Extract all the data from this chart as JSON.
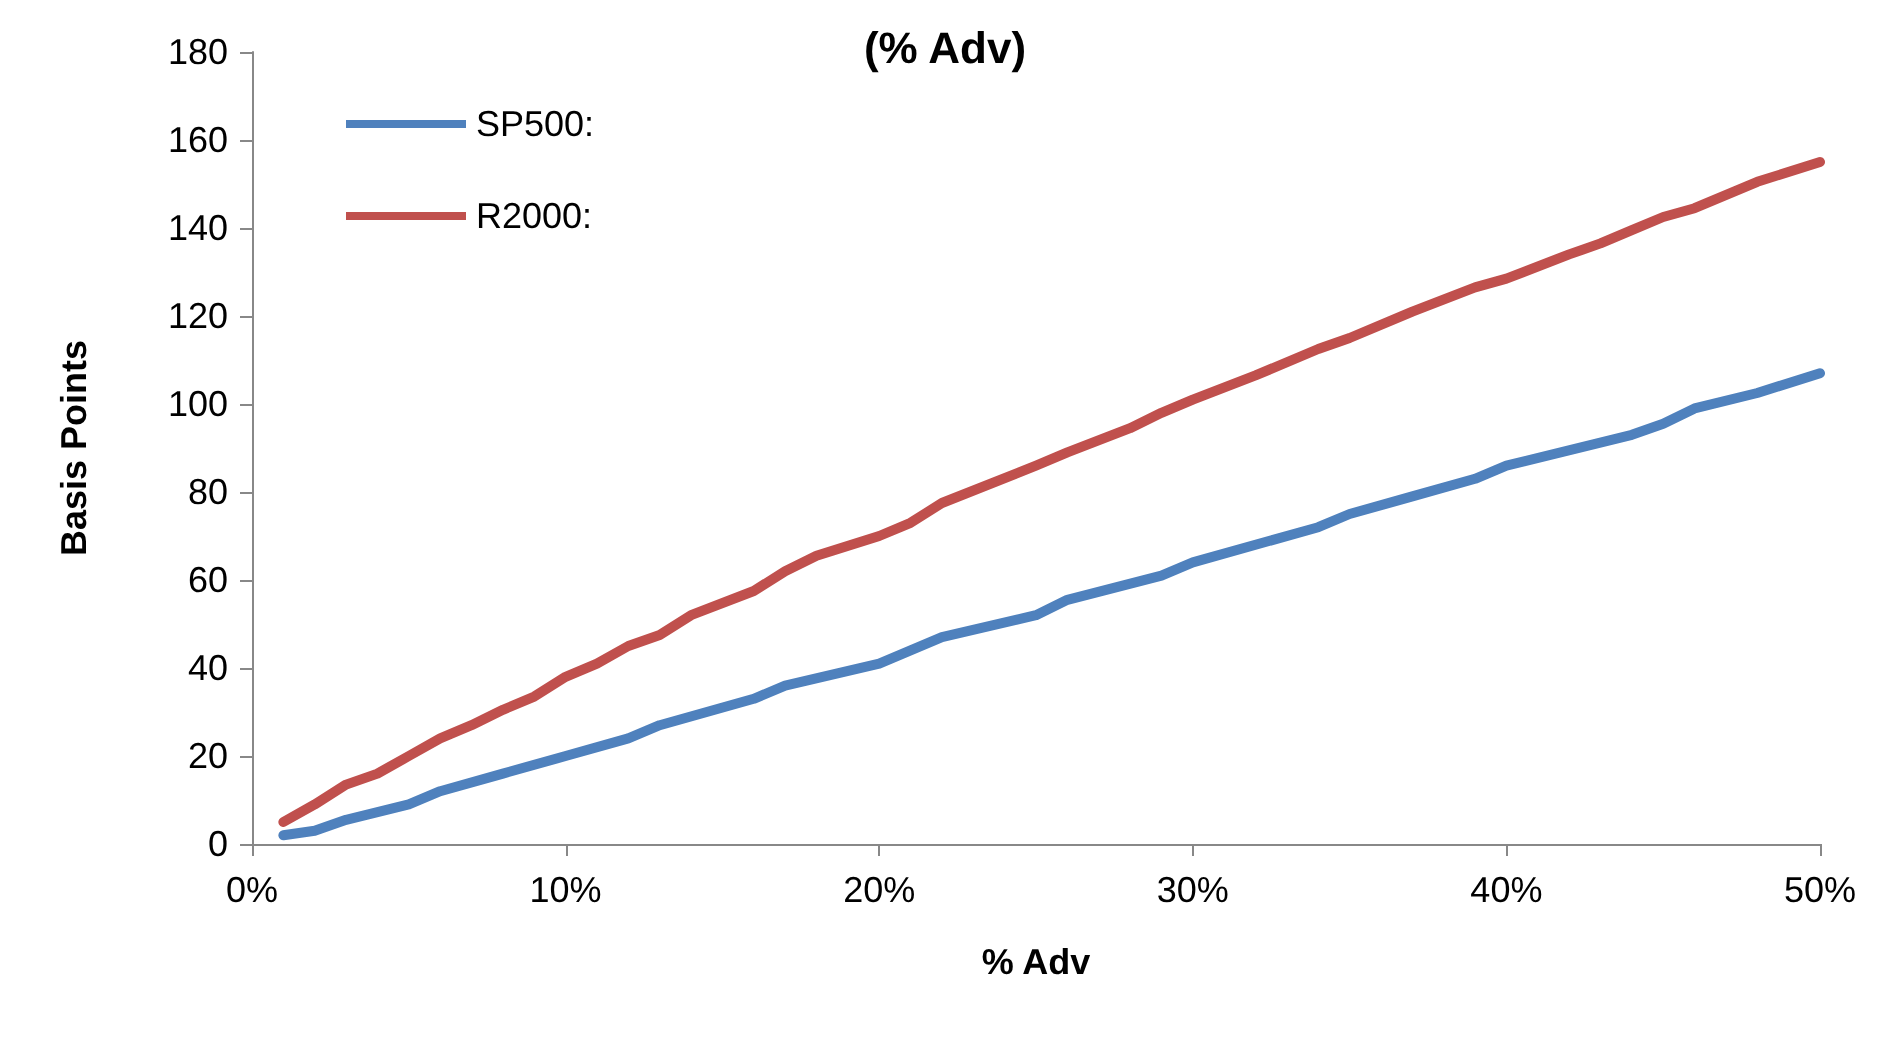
{
  "chart_data": {
    "type": "line",
    "title": "(% Adv)",
    "xlabel": "% Adv",
    "ylabel": "Basis Points",
    "xlim": [
      0,
      50
    ],
    "xticks": [
      {
        "value": 0,
        "label": "0%"
      },
      {
        "value": 10,
        "label": "10%"
      },
      {
        "value": 20,
        "label": "20%"
      },
      {
        "value": 30,
        "label": "30%"
      },
      {
        "value": 40,
        "label": "40%"
      },
      {
        "value": 50,
        "label": "50%"
      }
    ],
    "ylim": [
      0,
      180
    ],
    "yticks": [
      0,
      20,
      40,
      60,
      80,
      100,
      120,
      140,
      160,
      180
    ],
    "grid": false,
    "legend": "top left",
    "marker": "none",
    "line_style": "solid",
    "series": [
      {
        "name": "SP500:",
        "color": "#4f81bd",
        "x": [
          1,
          2,
          3,
          5,
          6,
          8,
          10,
          12,
          13,
          16,
          17,
          20,
          21,
          22,
          25,
          26,
          29,
          30,
          34,
          35,
          37,
          39,
          40,
          44,
          45,
          46,
          48,
          50
        ],
        "values": [
          2,
          3,
          5.5,
          9,
          12,
          16,
          20,
          24,
          27,
          33,
          36,
          41,
          44,
          47,
          52,
          55.5,
          61,
          64,
          72,
          75,
          79,
          83,
          86,
          93,
          95.5,
          99,
          102.5,
          107
        ]
      },
      {
        "name": "R2000:",
        "color": "#c0504d",
        "x": [
          1,
          2,
          3,
          4,
          5,
          6,
          7,
          8,
          9,
          10,
          11,
          12,
          13,
          14,
          16,
          17,
          18,
          20,
          21,
          22,
          25,
          26,
          28,
          29,
          30,
          32,
          34,
          35,
          37,
          39,
          40,
          42,
          43,
          44,
          45,
          46,
          48,
          50
        ],
        "values": [
          5,
          9,
          13.5,
          16,
          20,
          24,
          27,
          30.5,
          33.5,
          38,
          41,
          45,
          47.5,
          52,
          57.5,
          62,
          65.5,
          70,
          73,
          77.5,
          86,
          89,
          94.5,
          98,
          101,
          106.5,
          112.5,
          115,
          121,
          126.5,
          128.5,
          134,
          136.5,
          139.5,
          142.5,
          144.5,
          150.5,
          155
        ]
      }
    ]
  }
}
